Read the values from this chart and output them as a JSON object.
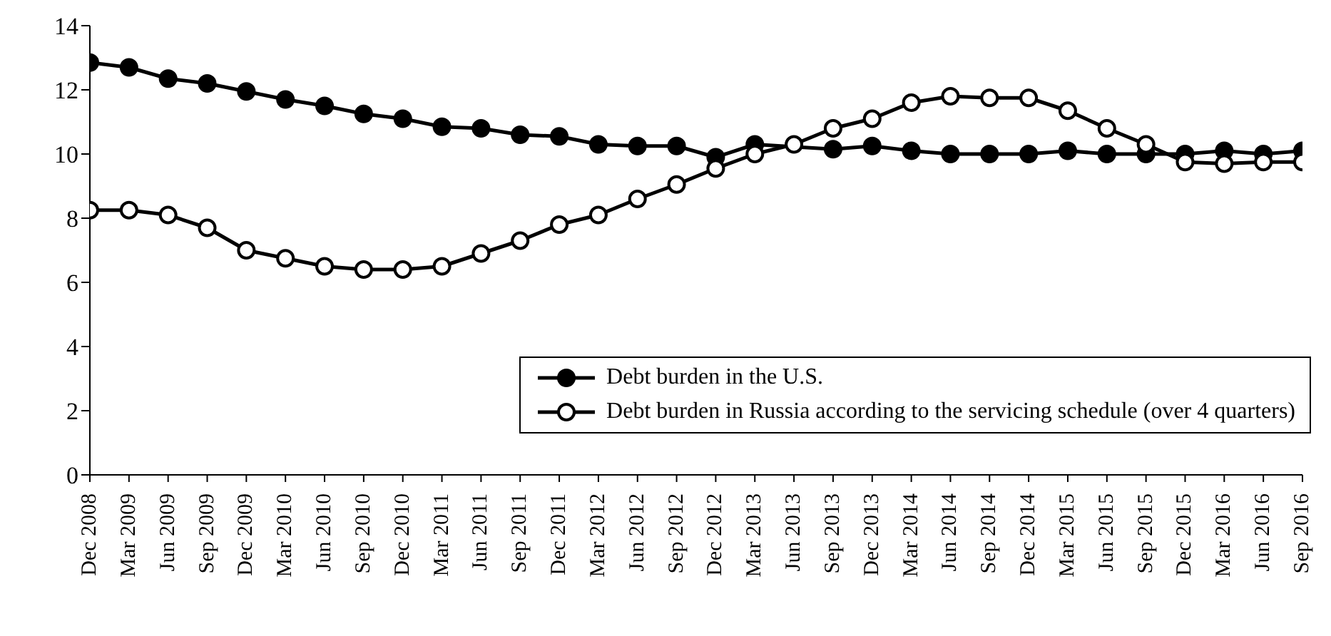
{
  "chart_data": {
    "type": "line",
    "categories": [
      "Dec 2008",
      "Mar 2009",
      "Jun 2009",
      "Sep 2009",
      "Dec 2009",
      "Mar 2010",
      "Jun 2010",
      "Sep 2010",
      "Dec 2010",
      "Mar 2011",
      "Jun 2011",
      "Sep 2011",
      "Dec 2011",
      "Mar 2012",
      "Jun 2012",
      "Sep 2012",
      "Dec 2012",
      "Mar 2013",
      "Jun 2013",
      "Sep 2013",
      "Dec 2013",
      "Mar 2014",
      "Jun 2014",
      "Sep 2014",
      "Dec 2014",
      "Mar 2015",
      "Jun 2015",
      "Sep 2015",
      "Dec 2015",
      "Mar 2016",
      "Jun 2016",
      "Sep 2016"
    ],
    "series": [
      {
        "name": "Debt burden in the U.S.",
        "color": "#000000",
        "marker": "circle",
        "values": [
          12.85,
          12.7,
          12.35,
          12.2,
          11.95,
          11.7,
          11.5,
          11.25,
          11.1,
          10.85,
          10.8,
          10.6,
          10.55,
          10.3,
          10.25,
          10.25,
          9.9,
          10.3,
          null,
          10.15,
          10.25,
          10.1,
          10.0,
          10.0,
          10.0,
          10.1,
          10.0,
          10.0,
          10.0,
          10.1,
          10.0,
          10.1
        ]
      },
      {
        "name": "Debt burden in Russia according to the servicing schedule (over 4 quarters)",
        "color": "#000000",
        "marker": "open-circle",
        "values": [
          8.25,
          8.25,
          8.1,
          7.7,
          7.0,
          6.75,
          6.5,
          6.4,
          6.4,
          6.5,
          6.9,
          7.3,
          7.8,
          8.1,
          8.6,
          9.05,
          9.55,
          10.0,
          10.3,
          10.8,
          11.1,
          11.6,
          11.8,
          11.75,
          11.75,
          11.35,
          10.8,
          10.3,
          9.75,
          9.7,
          9.75,
          9.75
        ]
      }
    ],
    "ylim": [
      0,
      14
    ],
    "yticks": [
      0,
      2,
      4,
      6,
      8,
      10,
      12,
      14
    ],
    "grid": false,
    "legend": "bottom right",
    "line_style": "solid"
  }
}
